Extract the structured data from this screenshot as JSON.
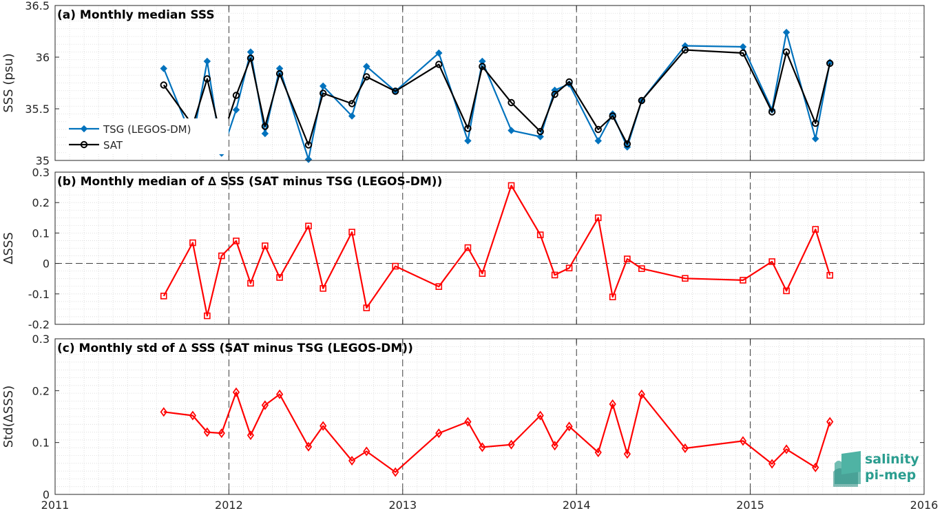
{
  "logo": {
    "line1": "salinity",
    "line2": "pi-mep"
  },
  "chart_data": [
    {
      "type": "line",
      "title": "(a) Monthly median SSS",
      "xlabel": "",
      "ylabel": "SSS (psu)",
      "xlim": [
        2011,
        2016
      ],
      "ylim": [
        35,
        36.5
      ],
      "yticks": [
        "35",
        "35.5",
        "36",
        "36.5"
      ],
      "grid": true,
      "legend": "left",
      "x": [
        2011.625,
        2011.792,
        2011.875,
        2011.958,
        2012.042,
        2012.125,
        2012.208,
        2012.292,
        2012.458,
        2012.542,
        2012.708,
        2012.792,
        2012.958,
        2013.208,
        2013.375,
        2013.458,
        2013.625,
        2013.792,
        2013.875,
        2013.958,
        2014.125,
        2014.208,
        2014.292,
        2014.375,
        2014.625,
        2014.958,
        2015.125,
        2015.208,
        2015.375,
        2015.458
      ],
      "series": [
        {
          "name": "TSG (LEGOS-DM)",
          "color": "#0072BD",
          "marker": "diamond",
          "values": [
            35.89,
            35.2,
            35.96,
            35.07,
            35.49,
            36.05,
            35.26,
            35.89,
            35.01,
            35.72,
            35.43,
            35.91,
            35.67,
            36.04,
            35.19,
            35.96,
            35.29,
            35.23,
            35.68,
            35.74,
            35.19,
            35.45,
            35.13,
            35.58,
            36.11,
            36.1,
            35.49,
            36.24,
            35.21,
            35.95
          ]
        },
        {
          "name": "SAT",
          "color": "#000000",
          "marker": "circle",
          "values": [
            35.73,
            35.34,
            35.79,
            35.2,
            35.63,
            35.99,
            35.33,
            35.84,
            35.15,
            35.65,
            35.55,
            35.81,
            35.67,
            35.93,
            35.31,
            35.91,
            35.56,
            35.28,
            35.64,
            35.76,
            35.3,
            35.43,
            35.16,
            35.58,
            36.07,
            36.04,
            35.47,
            36.05,
            35.36,
            35.94
          ]
        }
      ]
    },
    {
      "type": "line",
      "title": "(b) Monthly median of ∆ SSS (SAT minus TSG (LEGOS-DM))",
      "xlabel": "",
      "ylabel": "ΔSSS",
      "xlim": [
        2011,
        2016
      ],
      "ylim": [
        -0.2,
        0.3
      ],
      "yticks": [
        "-0.2",
        "-0.1",
        "0",
        "0.1",
        "0.2",
        "0.3"
      ],
      "grid": true,
      "reference_line": 0,
      "x": [
        2011.625,
        2011.792,
        2011.875,
        2011.958,
        2012.042,
        2012.125,
        2012.208,
        2012.292,
        2012.458,
        2012.542,
        2012.708,
        2012.792,
        2012.958,
        2013.208,
        2013.375,
        2013.458,
        2013.625,
        2013.792,
        2013.875,
        2013.958,
        2014.125,
        2014.208,
        2014.292,
        2014.375,
        2014.625,
        2014.958,
        2015.125,
        2015.208,
        2015.375,
        2015.458
      ],
      "series": [
        {
          "color": "#FF0000",
          "marker": "square",
          "values": [
            -0.107,
            0.068,
            -0.172,
            0.025,
            0.074,
            -0.065,
            0.058,
            -0.046,
            0.123,
            -0.082,
            0.103,
            -0.146,
            -0.009,
            -0.076,
            0.052,
            -0.033,
            0.256,
            0.094,
            -0.038,
            -0.015,
            0.15,
            -0.11,
            0.015,
            -0.017,
            -0.049,
            -0.055,
            0.006,
            -0.09,
            0.112,
            -0.039
          ]
        }
      ]
    },
    {
      "type": "line",
      "title": "(c) Monthly std of ∆ SSS (SAT minus TSG (LEGOS-DM))",
      "xlabel": "",
      "ylabel": "Std(ΔSSS)",
      "xlim": [
        2011,
        2016
      ],
      "ylim": [
        0,
        0.3
      ],
      "yticks": [
        "0",
        "0.1",
        "0.2",
        "0.3"
      ],
      "xticks": [
        "2011",
        "2012",
        "2013",
        "2014",
        "2015",
        "2016"
      ],
      "grid": true,
      "x": [
        2011.625,
        2011.792,
        2011.875,
        2011.958,
        2012.042,
        2012.125,
        2012.208,
        2012.292,
        2012.458,
        2012.542,
        2012.708,
        2012.792,
        2012.958,
        2013.208,
        2013.375,
        2013.458,
        2013.625,
        2013.792,
        2013.875,
        2013.958,
        2014.125,
        2014.208,
        2014.292,
        2014.375,
        2014.625,
        2014.958,
        2015.125,
        2015.208,
        2015.375,
        2015.458
      ],
      "series": [
        {
          "color": "#FF0000",
          "marker": "diamond",
          "values": [
            0.159,
            0.152,
            0.12,
            0.118,
            0.197,
            0.114,
            0.172,
            0.193,
            0.092,
            0.132,
            0.065,
            0.083,
            0.043,
            0.118,
            0.14,
            0.091,
            0.096,
            0.152,
            0.094,
            0.131,
            0.081,
            0.174,
            0.078,
            0.193,
            0.089,
            0.103,
            0.059,
            0.087,
            0.052,
            0.14
          ]
        }
      ]
    }
  ]
}
